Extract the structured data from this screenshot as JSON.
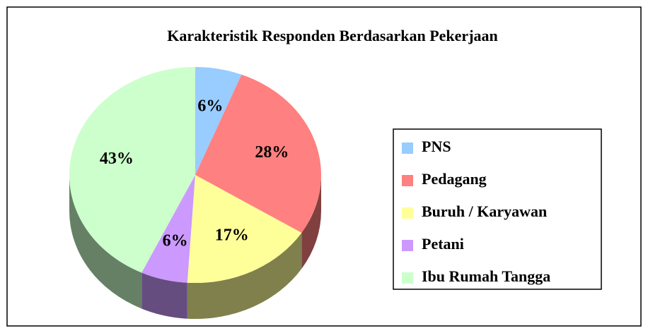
{
  "chart_data": {
    "type": "pie",
    "title": "Karakteristik Responden Berdasarkan Pekerjaan",
    "categories": [
      "PNS",
      "Pedagang",
      "Buruh / Karyawan",
      "Petani",
      "Ibu Rumah Tangga"
    ],
    "values": [
      6,
      28,
      17,
      6,
      43
    ],
    "value_labels": [
      "6%",
      "28%",
      "17%",
      "6%",
      "43%"
    ],
    "colors": [
      "#99ccff",
      "#ff8080",
      "#ffff99",
      "#cc99ff",
      "#ccffcc"
    ],
    "legend": "right"
  }
}
